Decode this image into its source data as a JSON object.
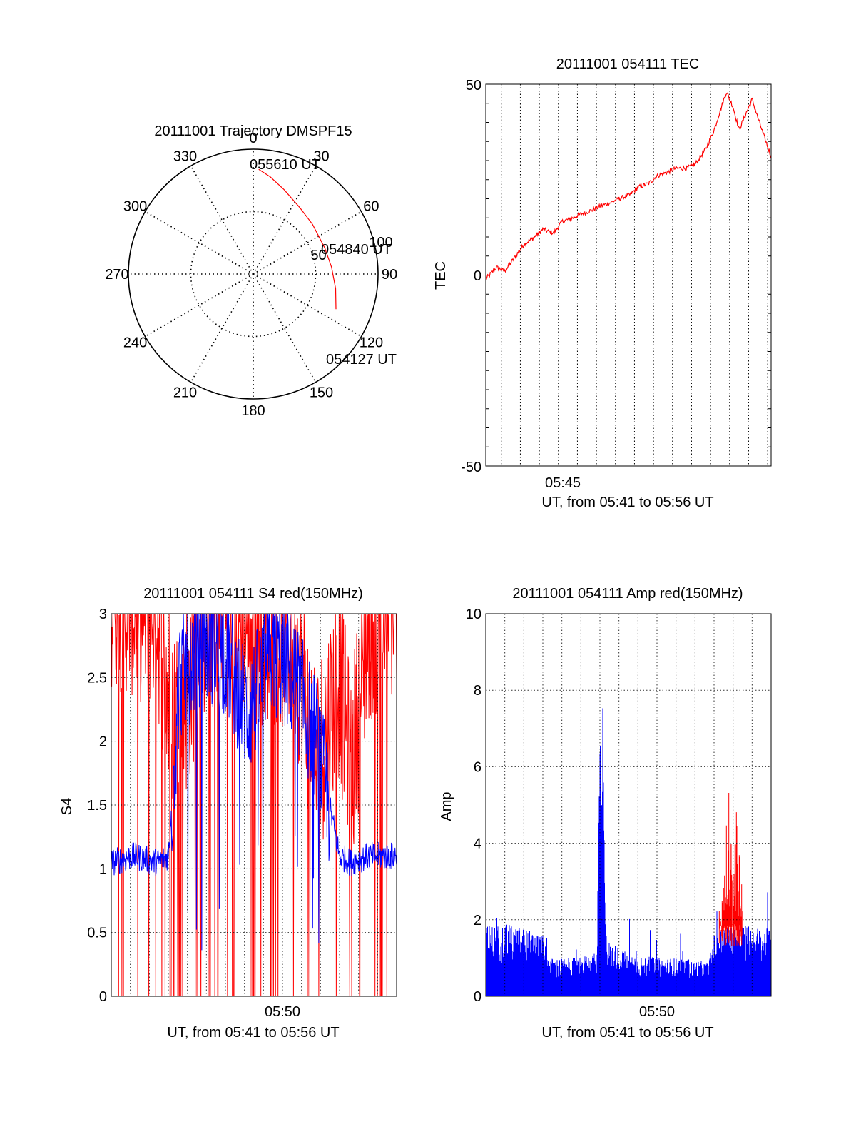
{
  "colors": {
    "red": "#ff0000",
    "blue": "#0000ff",
    "axis": "#000000",
    "grid": "#000000"
  },
  "chart_data": [
    {
      "id": "trajectory",
      "type": "polar",
      "title": "20111001 Trajectory DMSPF15",
      "angle_labels": [
        "0",
        "30",
        "60",
        "90",
        "120",
        "150",
        "180",
        "210",
        "240",
        "270",
        "300",
        "330"
      ],
      "radius_labels": [
        "50",
        "100"
      ],
      "rlim": [
        0,
        100
      ],
      "track": [
        {
          "azimuth": 3,
          "radius": 84
        },
        {
          "azimuth": 10,
          "radius": 79
        },
        {
          "azimuth": 20,
          "radius": 72
        },
        {
          "azimuth": 35,
          "radius": 65
        },
        {
          "azimuth": 50,
          "radius": 62
        },
        {
          "azimuth": 70,
          "radius": 61
        },
        {
          "azimuth": 85,
          "radius": 63
        },
        {
          "azimuth": 100,
          "radius": 67
        },
        {
          "azimuth": 113,
          "radius": 72
        }
      ],
      "annotations": [
        {
          "text": "055610 UT",
          "point": "end"
        },
        {
          "text": "054840 UT",
          "point": "middle"
        },
        {
          "text": "054127 UT",
          "point": "start"
        }
      ]
    },
    {
      "id": "tec",
      "type": "line",
      "title": "20111001 054111 TEC",
      "ylabel": "TEC",
      "xlabel": "UT, from 05:41 to 05:56 UT",
      "xtick_labels": [
        "05:45"
      ],
      "ytick_labels": [
        "50",
        "0",
        "-50"
      ],
      "xlim": [
        "05:41:11",
        "05:56:11"
      ],
      "ylim": [
        -50,
        50
      ],
      "series": [
        {
          "color": "red",
          "x": [
            "05:41:11",
            "05:41:45",
            "05:42:11",
            "05:42:45",
            "05:43:11",
            "05:43:45",
            "05:44:11",
            "05:44:45",
            "05:45:11",
            "05:45:45",
            "05:46:11",
            "05:46:45",
            "05:47:11",
            "05:47:45",
            "05:48:11",
            "05:48:45",
            "05:49:11",
            "05:49:45",
            "05:50:11",
            "05:50:45",
            "05:51:11",
            "05:51:45",
            "05:52:11",
            "05:52:45",
            "05:53:11",
            "05:53:30",
            "05:53:50",
            "05:54:11",
            "05:54:30",
            "05:54:50",
            "05:55:11",
            "05:55:30",
            "05:55:50",
            "05:56:11"
          ],
          "values": [
            -1,
            2,
            1,
            5,
            8,
            10,
            12,
            11,
            14,
            15,
            16,
            17,
            18,
            19,
            20,
            21,
            23,
            24,
            26,
            27,
            28,
            28,
            29,
            33,
            38,
            43,
            48,
            44,
            38,
            42,
            46,
            41,
            36,
            31
          ]
        }
      ]
    },
    {
      "id": "s4",
      "type": "line",
      "title": "20111001 054111 S4 red(150MHz)",
      "ylabel": "S4",
      "xlabel": "UT, from 05:41 to 05:56 UT",
      "xtick_labels": [
        "05:50"
      ],
      "ytick_labels": [
        "0",
        "0.5",
        "1",
        "1.5",
        "2",
        "2.5",
        "3"
      ],
      "xlim": [
        "05:41:11",
        "05:56:11"
      ],
      "ylim": [
        0,
        3
      ],
      "series": [
        {
          "color": "red",
          "description_values": "noisy, mostly saturated at 3 with frequent drops to 0"
        },
        {
          "color": "blue",
          "description_values": "~1.05 near start and end, saturated near 3 in the middle"
        }
      ],
      "profiles": {
        "x_fraction": [
          0.0,
          0.08,
          0.16,
          0.2,
          0.24,
          0.32,
          0.4,
          0.48,
          0.56,
          0.64,
          0.72,
          0.8,
          0.84,
          0.9,
          1.0
        ],
        "blue_level": [
          1.05,
          1.1,
          1.05,
          1.1,
          2.5,
          2.8,
          2.7,
          2.2,
          2.7,
          2.5,
          2.0,
          1.1,
          1.05,
          1.1,
          1.1
        ],
        "red_level": [
          2.9,
          2.8,
          2.7,
          2.0,
          1.8,
          2.6,
          2.9,
          2.6,
          2.6,
          2.5,
          1.5,
          2.2,
          1.4,
          2.6,
          2.8
        ]
      }
    },
    {
      "id": "amp",
      "type": "area",
      "title": "20111001 054111 Amp red(150MHz)",
      "ylabel": "Amp",
      "xlabel": "UT, from 05:41 to 05:56 UT",
      "xtick_labels": [
        "05:50"
      ],
      "ytick_labels": [
        "0",
        "2",
        "4",
        "6",
        "8",
        "10"
      ],
      "xlim": [
        "05:41:11",
        "05:56:11"
      ],
      "ylim": [
        0,
        10
      ],
      "series": [
        {
          "color": "blue",
          "x_fraction": [
            0.0,
            0.1,
            0.2,
            0.22,
            0.3,
            0.39,
            0.4,
            0.41,
            0.42,
            0.5,
            0.6,
            0.7,
            0.78,
            0.8,
            0.85,
            0.9,
            1.0
          ],
          "values": [
            1.5,
            1.5,
            1.3,
            0.8,
            0.8,
            0.9,
            7.2,
            6.5,
            1.2,
            0.9,
            0.8,
            0.8,
            0.7,
            1.3,
            1.5,
            1.5,
            1.4
          ]
        },
        {
          "color": "red",
          "x_fraction": [
            0.8,
            0.83,
            0.85,
            0.87,
            0.88,
            0.9
          ],
          "values": [
            1.3,
            2.8,
            5.5,
            3.5,
            5.0,
            2.5
          ]
        }
      ]
    }
  ]
}
